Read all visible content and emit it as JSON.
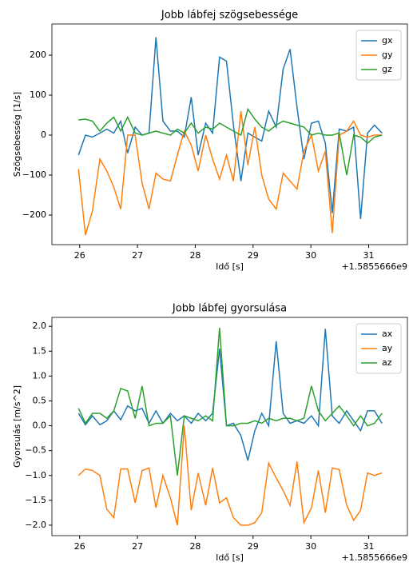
{
  "chart_data": [
    {
      "type": "line",
      "title": "Jobb lábfej szögsebessége",
      "xlabel": "Idő [s]",
      "ylabel": "Szögsebesség [1/s]",
      "x_offset_label": "+1.5855666e9",
      "x": [
        25.98,
        26.1,
        26.22,
        26.35,
        26.47,
        26.59,
        26.71,
        26.83,
        26.96,
        27.08,
        27.2,
        27.32,
        27.44,
        27.57,
        27.69,
        27.81,
        27.93,
        28.05,
        28.18,
        28.3,
        28.42,
        28.54,
        28.66,
        28.79,
        28.91,
        29.03,
        29.15,
        29.27,
        29.4,
        29.52,
        29.64,
        29.76,
        29.88,
        30.01,
        30.13,
        30.25,
        30.37,
        30.49,
        30.62,
        30.74,
        30.86,
        30.98,
        31.1,
        31.23
      ],
      "series": [
        {
          "name": "gx",
          "color": "#1f77b4",
          "values": [
            -50,
            0,
            -5,
            5,
            15,
            5,
            35,
            -45,
            20,
            0,
            5,
            245,
            35,
            10,
            10,
            -5,
            95,
            -50,
            30,
            5,
            195,
            185,
            25,
            -115,
            5,
            -5,
            -15,
            60,
            20,
            165,
            215,
            70,
            -60,
            30,
            35,
            -20,
            -195,
            15,
            10,
            20,
            -210,
            5,
            25,
            5
          ]
        },
        {
          "name": "gy",
          "color": "#ff7f0e",
          "values": [
            -85,
            -250,
            -190,
            -60,
            -90,
            -130,
            -185,
            0,
            0,
            -120,
            -185,
            -95,
            -110,
            -115,
            -50,
            10,
            -25,
            -90,
            0,
            -60,
            -110,
            -50,
            -115,
            60,
            -75,
            20,
            -100,
            -160,
            -185,
            -95,
            -115,
            -135,
            -40,
            0,
            -90,
            -40,
            -245,
            0,
            10,
            35,
            0,
            -5,
            0,
            0
          ]
        },
        {
          "name": "gz",
          "color": "#2ca02c",
          "values": [
            38,
            40,
            35,
            10,
            30,
            45,
            10,
            45,
            5,
            0,
            5,
            10,
            5,
            0,
            15,
            5,
            30,
            5,
            20,
            15,
            30,
            20,
            10,
            0,
            65,
            40,
            20,
            10,
            25,
            35,
            30,
            25,
            20,
            0,
            5,
            0,
            0,
            5,
            -100,
            0,
            -5,
            -20,
            -5,
            0
          ]
        }
      ],
      "xlim": [
        25.52,
        31.67
      ],
      "xticks": [
        26,
        27,
        28,
        29,
        30,
        31
      ],
      "ylim": [
        -274,
        278
      ],
      "yticks": [
        {
          "value": -200,
          "label": "−200"
        },
        {
          "value": -100,
          "label": "−100"
        },
        0,
        100,
        200
      ],
      "legend": "upper right"
    },
    {
      "type": "line",
      "title": "Jobb lábfej gyorsulása",
      "xlabel": "Idő [s]",
      "ylabel": "Gyorsulás [m/s^2]",
      "x_offset_label": "+1.5855666e9",
      "x": [
        25.98,
        26.1,
        26.22,
        26.35,
        26.47,
        26.59,
        26.71,
        26.83,
        26.96,
        27.08,
        27.2,
        27.32,
        27.44,
        27.57,
        27.69,
        27.81,
        27.93,
        28.05,
        28.18,
        28.3,
        28.42,
        28.54,
        28.66,
        28.79,
        28.91,
        29.03,
        29.15,
        29.27,
        29.4,
        29.52,
        29.64,
        29.76,
        29.88,
        30.01,
        30.13,
        30.25,
        30.37,
        30.49,
        30.62,
        30.74,
        30.86,
        30.98,
        31.1,
        31.23
      ],
      "series": [
        {
          "name": "ax",
          "color": "#1f77b4",
          "values": [
            0.25,
            0.02,
            0.2,
            0.02,
            0.1,
            0.3,
            0.12,
            0.4,
            0.3,
            0.35,
            0.05,
            0.3,
            0.05,
            0.25,
            0.1,
            0.2,
            0.05,
            0.25,
            0.1,
            0.25,
            1.55,
            0,
            0.05,
            -0.2,
            -0.7,
            -0.1,
            0.25,
            0,
            1.7,
            0.25,
            0.05,
            0.1,
            0.05,
            0.2,
            0,
            1.95,
            0.2,
            0.05,
            0.3,
            0.1,
            -0.1,
            0.3,
            0.3,
            0.05
          ]
        },
        {
          "name": "ay",
          "color": "#ff7f0e",
          "values": [
            -1,
            -0.87,
            -0.9,
            -1,
            -1.68,
            -1.85,
            -0.87,
            -0.87,
            -1.55,
            -0.9,
            -0.85,
            -1.65,
            -1,
            -1.45,
            -2,
            0,
            -1.7,
            -0.95,
            -1.6,
            -0.85,
            -1.55,
            -1.45,
            -1.85,
            -2,
            -2,
            -1.95,
            -1.75,
            -0.75,
            -1.05,
            -1.3,
            -1.6,
            -0.72,
            -1.95,
            -1.65,
            -0.9,
            -1.75,
            -0.85,
            -0.88,
            -1.6,
            -1.9,
            -1.7,
            -0.95,
            -1,
            -0.95
          ]
        },
        {
          "name": "az",
          "color": "#2ca02c",
          "values": [
            0.35,
            0.05,
            0.25,
            0.25,
            0.15,
            0.3,
            0.75,
            0.7,
            0.15,
            0.8,
            0,
            0.05,
            0.05,
            0.2,
            -1,
            0.2,
            0.15,
            0.1,
            0.2,
            0.1,
            1.97,
            0,
            0,
            0.05,
            0.05,
            0.1,
            0.05,
            0.15,
            0.1,
            0.15,
            0.15,
            0.1,
            0.15,
            0.8,
            0.3,
            0.1,
            0.25,
            0.4,
            0.2,
            0,
            0.2,
            0,
            0.05,
            0.25
          ]
        }
      ],
      "xlim": [
        25.52,
        31.67
      ],
      "xticks": [
        26,
        27,
        28,
        29,
        30,
        31
      ],
      "ylim": [
        -2.21,
        2.18
      ],
      "yticks": [
        {
          "value": -2,
          "label": "−2.0"
        },
        {
          "value": -1.5,
          "label": "−1.5"
        },
        {
          "value": -1,
          "label": "−1.0"
        },
        {
          "value": -0.5,
          "label": "−0.5"
        },
        {
          "value": 0,
          "label": "0.0"
        },
        0.5,
        {
          "value": 1,
          "label": "1.0"
        },
        1.5,
        {
          "value": 2,
          "label": "2.0"
        }
      ],
      "legend": "upper right"
    }
  ]
}
